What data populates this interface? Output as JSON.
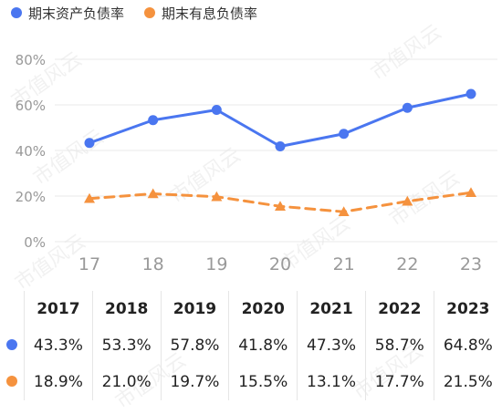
{
  "chart_data": {
    "type": "line",
    "categories": [
      "17",
      "18",
      "19",
      "20",
      "21",
      "22",
      "23"
    ],
    "series": [
      {
        "name": "期末资产负债率",
        "values": [
          43.3,
          53.3,
          57.8,
          41.8,
          47.3,
          58.7,
          64.8
        ],
        "color": "#4a76f0",
        "style": "solid",
        "marker": "circle"
      },
      {
        "name": "期末有息负债率",
        "values": [
          18.9,
          21.0,
          19.7,
          15.5,
          13.1,
          17.7,
          21.5
        ],
        "color": "#f5923e",
        "style": "dashed",
        "marker": "triangle"
      }
    ],
    "y_ticks": [
      "0%",
      "20%",
      "40%",
      "60%",
      "80%"
    ],
    "ylim": [
      0,
      80
    ],
    "grid": true,
    "legend": "top-left"
  },
  "table": {
    "years": [
      "2017",
      "2018",
      "2019",
      "2020",
      "2021",
      "2022",
      "2023"
    ],
    "rows": [
      [
        "43.3%",
        "53.3%",
        "57.8%",
        "41.8%",
        "47.3%",
        "58.7%",
        "64.8%"
      ],
      [
        "18.9%",
        "21.0%",
        "19.7%",
        "15.5%",
        "13.1%",
        "17.7%",
        "21.5%"
      ]
    ]
  },
  "watermark": "市值风云"
}
